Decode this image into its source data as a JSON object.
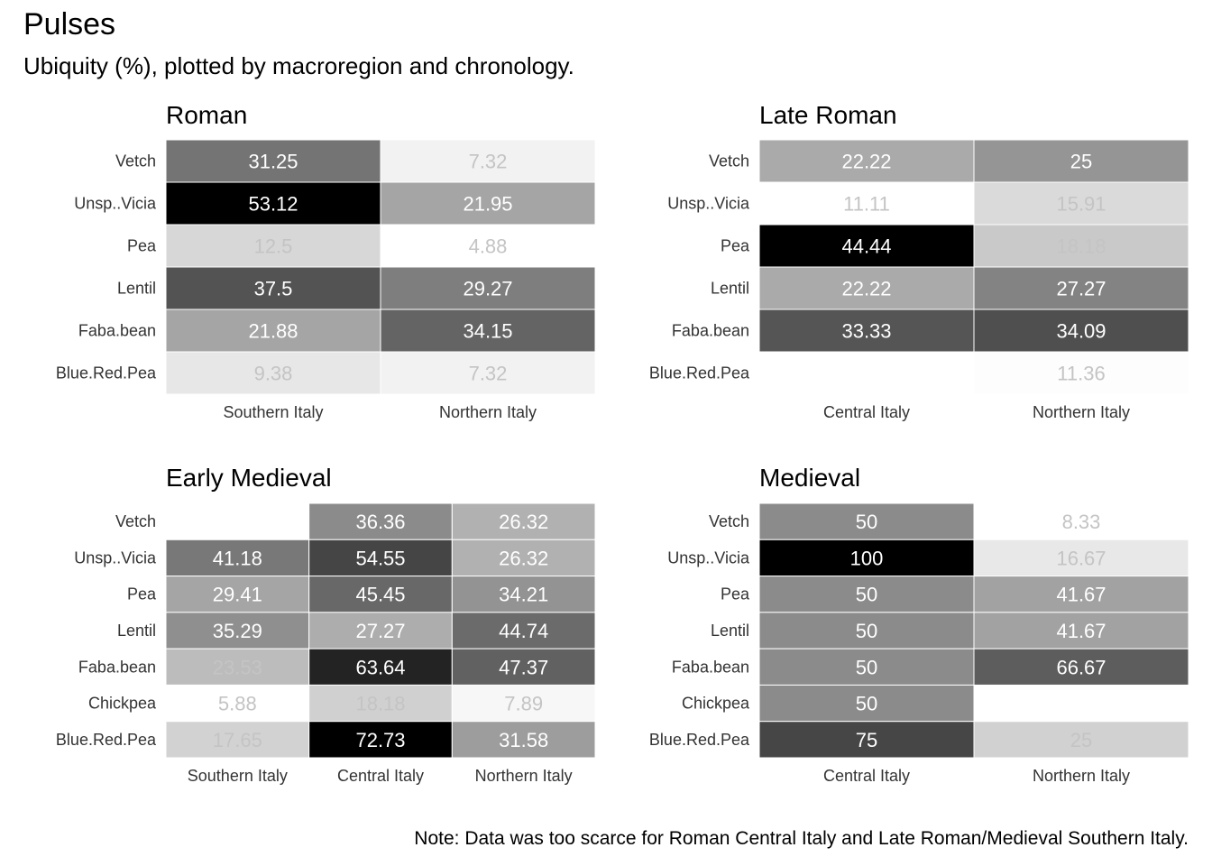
{
  "title": "Pulses",
  "subtitle": "Ubiquity (%), plotted by macroregion and chronology.",
  "caption": "Note: Data was too scarce for Roman Central Italy and Late Roman/Medieval Southern Italy.",
  "chart_data": [
    {
      "type": "heatmap",
      "title": "Roman",
      "columns": [
        "Southern Italy",
        "Northern Italy"
      ],
      "rows": [
        "Vetch",
        "Unsp..Vicia",
        "Pea",
        "Lentil",
        "Faba.bean",
        "Blue.Red.Pea"
      ],
      "values": [
        [
          31.25,
          7.32
        ],
        [
          53.12,
          21.95
        ],
        [
          12.5,
          4.88
        ],
        [
          37.5,
          29.27
        ],
        [
          21.88,
          34.15
        ],
        [
          9.38,
          7.32
        ]
      ],
      "labels": [
        [
          "31.25",
          "7.32"
        ],
        [
          "53.12",
          "21.95"
        ],
        [
          "12.5",
          "4.88"
        ],
        [
          "37.5",
          "29.27"
        ],
        [
          "21.88",
          "34.15"
        ],
        [
          "9.38",
          "7.32"
        ]
      ]
    },
    {
      "type": "heatmap",
      "title": "Late Roman",
      "columns": [
        "Central Italy",
        "Northern Italy"
      ],
      "rows": [
        "Vetch",
        "Unsp..Vicia",
        "Pea",
        "Lentil",
        "Faba.bean",
        "Blue.Red.Pea"
      ],
      "values": [
        [
          22.22,
          25
        ],
        [
          11.11,
          15.91
        ],
        [
          44.44,
          18.18
        ],
        [
          22.22,
          27.27
        ],
        [
          33.33,
          34.09
        ],
        [
          null,
          11.36
        ]
      ],
      "labels": [
        [
          "22.22",
          "25"
        ],
        [
          "11.11",
          "15.91"
        ],
        [
          "44.44",
          "18.18"
        ],
        [
          "22.22",
          "27.27"
        ],
        [
          "33.33",
          "34.09"
        ],
        [
          "",
          "11.36"
        ]
      ]
    },
    {
      "type": "heatmap",
      "title": "Early Medieval",
      "columns": [
        "Southern Italy",
        "Central Italy",
        "Northern Italy"
      ],
      "rows": [
        "Vetch",
        "Unsp..Vicia",
        "Pea",
        "Lentil",
        "Faba.bean",
        "Chickpea",
        "Blue.Red.Pea"
      ],
      "values": [
        [
          null,
          36.36,
          26.32
        ],
        [
          41.18,
          54.55,
          26.32
        ],
        [
          29.41,
          45.45,
          34.21
        ],
        [
          35.29,
          27.27,
          44.74
        ],
        [
          23.53,
          63.64,
          47.37
        ],
        [
          5.88,
          18.18,
          7.89
        ],
        [
          17.65,
          72.73,
          31.58
        ]
      ],
      "labels": [
        [
          "",
          "36.36",
          "26.32"
        ],
        [
          "41.18",
          "54.55",
          "26.32"
        ],
        [
          "29.41",
          "45.45",
          "34.21"
        ],
        [
          "35.29",
          "27.27",
          "44.74"
        ],
        [
          "23.53",
          "63.64",
          "47.37"
        ],
        [
          "5.88",
          "18.18",
          "7.89"
        ],
        [
          "17.65",
          "72.73",
          "31.58"
        ]
      ]
    },
    {
      "type": "heatmap",
      "title": "Medieval",
      "columns": [
        "Central Italy",
        "Northern Italy"
      ],
      "rows": [
        "Vetch",
        "Unsp..Vicia",
        "Pea",
        "Lentil",
        "Faba.bean",
        "Chickpea",
        "Blue.Red.Pea"
      ],
      "values": [
        [
          50,
          8.33
        ],
        [
          100,
          16.67
        ],
        [
          50,
          41.67
        ],
        [
          50,
          41.67
        ],
        [
          50,
          66.67
        ],
        [
          50,
          null
        ],
        [
          75,
          25
        ]
      ],
      "labels": [
        [
          "50",
          "8.33"
        ],
        [
          "100",
          "16.67"
        ],
        [
          "50",
          "41.67"
        ],
        [
          "50",
          "41.67"
        ],
        [
          "50",
          "66.67"
        ],
        [
          "50",
          ""
        ],
        [
          "75",
          "25"
        ]
      ]
    }
  ]
}
